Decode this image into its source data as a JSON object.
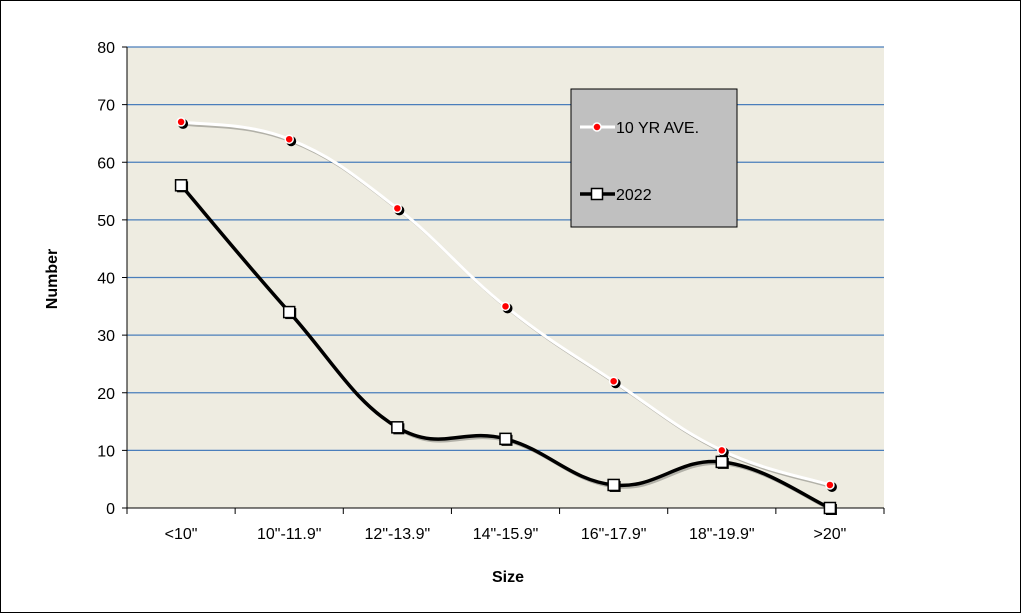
{
  "chart_data": {
    "type": "line",
    "title": "",
    "xlabel": "Size",
    "ylabel": "Number",
    "categories": [
      "<10\"",
      "10\"-11.9\"",
      "12\"-13.9\"",
      "14\"-15.9\"",
      "16\"-17.9\"",
      "18\"-19.9\"",
      ">20\""
    ],
    "ylim": [
      0,
      80
    ],
    "yticks": [
      0,
      10,
      20,
      30,
      40,
      50,
      60,
      70,
      80
    ],
    "grid": true,
    "legend_position": "top-right",
    "plot_background": "#eeece1",
    "gridline_color": "#4a7ebb",
    "legend_background": "#c0c0c0",
    "series": [
      {
        "name": "10 YR AVE.",
        "values": [
          67,
          64,
          52,
          35,
          22,
          10,
          4
        ],
        "line_color": "#ffffff",
        "marker": "circle",
        "marker_color": "#ff0000"
      },
      {
        "name": "2022",
        "values": [
          56,
          34,
          14,
          12,
          4,
          8,
          0
        ],
        "line_color": "#000000",
        "marker": "square",
        "marker_color": "#ffffff"
      }
    ]
  }
}
